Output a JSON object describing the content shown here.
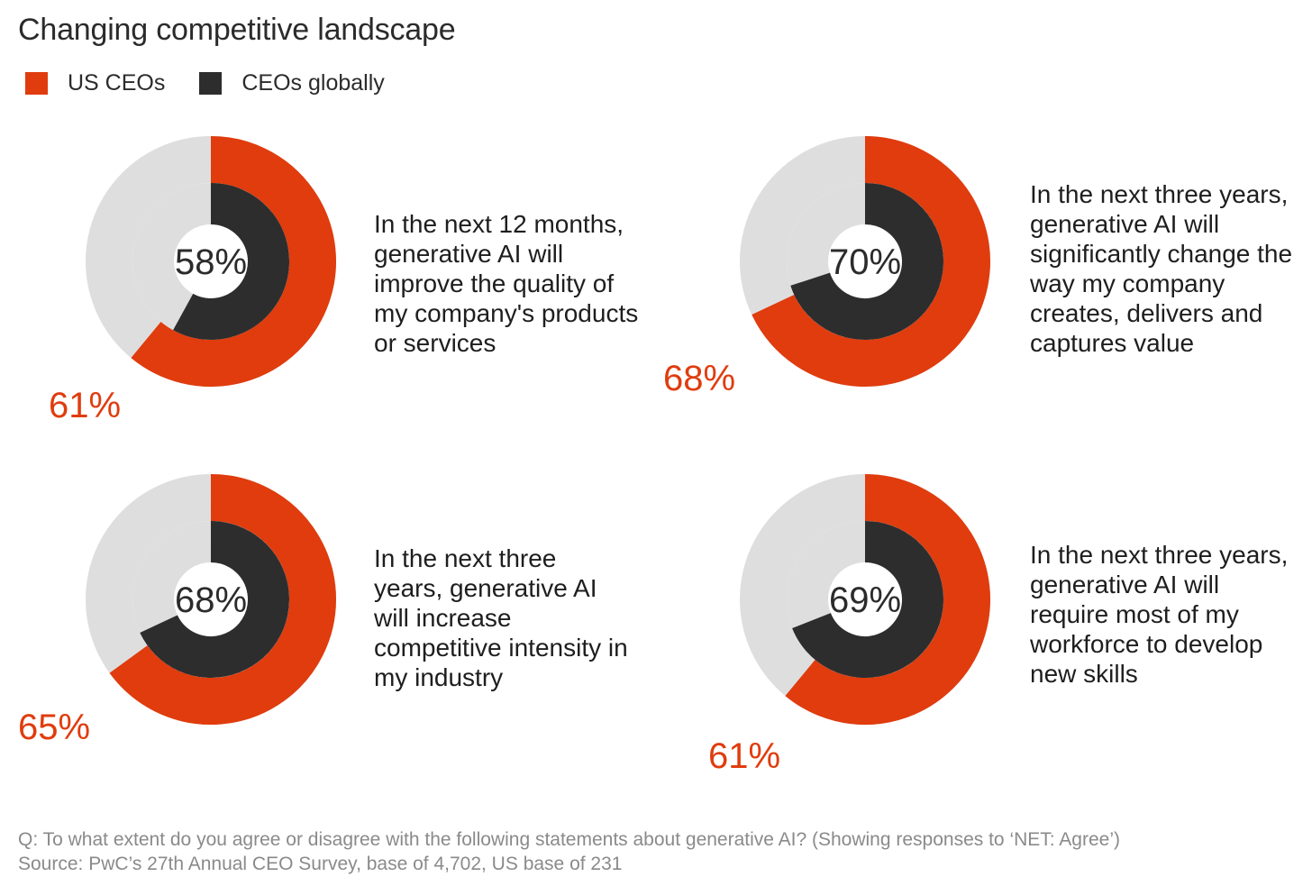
{
  "chart_data": {
    "type": "pie",
    "title": "Changing competitive landscape",
    "legend": [
      {
        "name": "US CEOs",
        "color": "#e03c0e"
      },
      {
        "name": "CEOs globally",
        "color": "#2d2d2d"
      }
    ],
    "panels": [
      {
        "statement": "In the next 12 months, generative AI will improve the quality of my company's products or services",
        "us_value": 61,
        "global_value": 58,
        "us_label": "61%",
        "global_label": "58%"
      },
      {
        "statement": "In the next three years, generative AI will significantly change the way my company creates, delivers and captures value",
        "us_value": 68,
        "global_value": 70,
        "us_label": "68%",
        "global_label": "70%"
      },
      {
        "statement": "In the next three years, generative AI will increase competitive intensity in my industry",
        "us_value": 65,
        "global_value": 68,
        "us_label": "65%",
        "global_label": "68%"
      },
      {
        "statement": "In the next three years, generative AI will require most of my workforce to develop new skills",
        "us_value": 61,
        "global_value": 69,
        "us_label": "61%",
        "global_label": "69%"
      }
    ],
    "colors": {
      "us": "#e03c0e",
      "global": "#2d2d2d",
      "track": "#dedede"
    }
  },
  "footnote": {
    "question": "Q: To what extent do you agree or disagree with the following statements about generative AI? (Showing responses to ‘NET: Agree’)",
    "source": "Source: PwC’s 27th Annual CEO Survey, base of 4,702, US base of 231"
  }
}
